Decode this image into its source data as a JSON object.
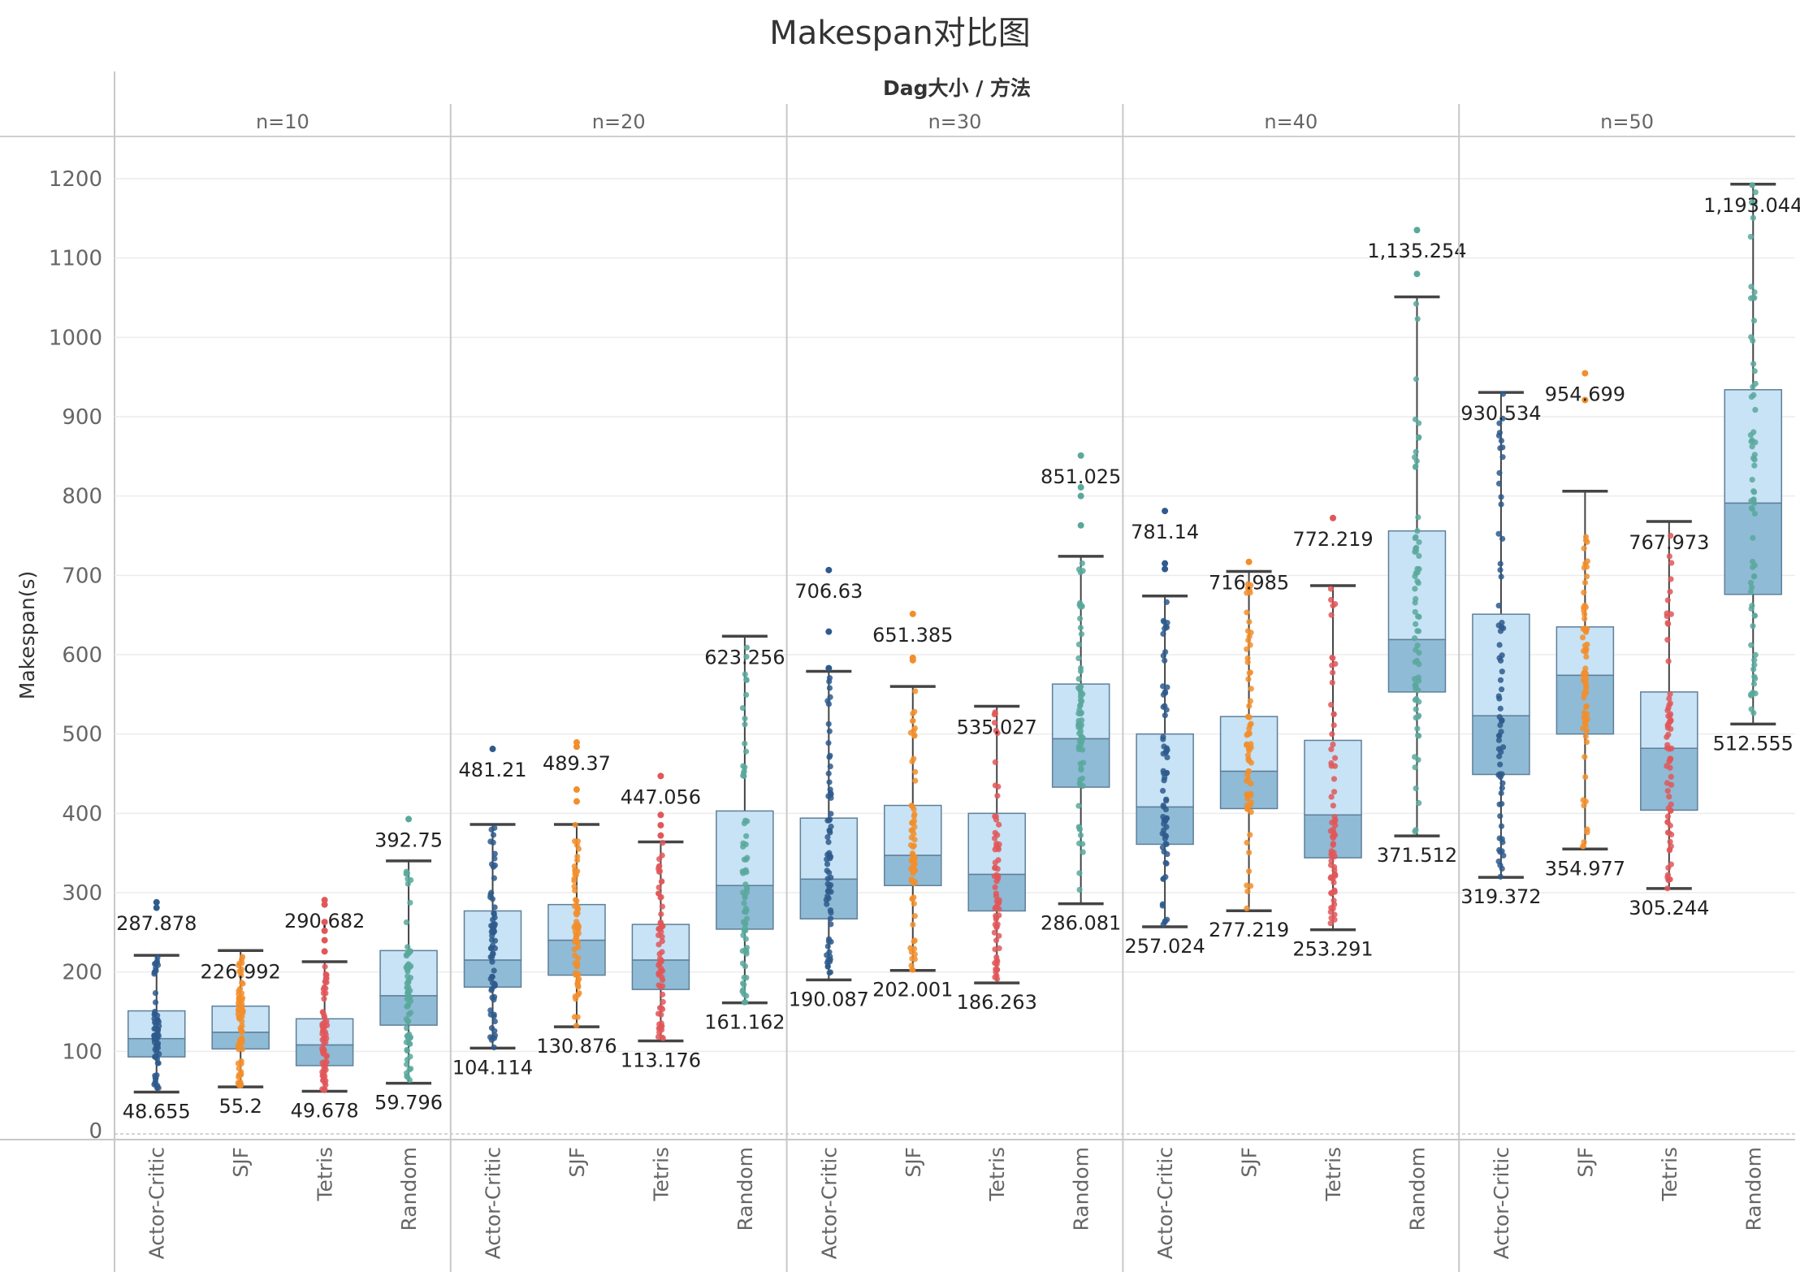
{
  "chart_data": {
    "type": "boxplot",
    "title": "Makespan对比图",
    "header": "Dag大小 / 方法",
    "ylabel": "Makespan(s)",
    "ylim": [
      0,
      1200
    ],
    "yticks": [
      0,
      100,
      200,
      300,
      400,
      500,
      600,
      700,
      800,
      900,
      1000,
      1100,
      1200
    ],
    "grid": true,
    "method_colors": {
      "Actor-Critic": "#2e5a8c",
      "SJF": "#f28e2b",
      "Tetris": "#e15759",
      "Random": "#59a89c"
    },
    "box_colors": {
      "upper": "#c7e3f5",
      "lower": "#8fbbd6",
      "whisker": "#444444"
    },
    "panels": [
      {
        "label": "n=10",
        "groups": [
          {
            "method": "Actor-Critic",
            "min": 48.655,
            "q1": 93,
            "median": 116,
            "q3": 151,
            "max": 287.878,
            "whisker_high": 221,
            "outliers": [
              281,
              287.878
            ],
            "max_label": "287.878",
            "min_label": "48.655"
          },
          {
            "method": "SJF",
            "min": 55.2,
            "q1": 103,
            "median": 124,
            "q3": 157,
            "max": 226.992,
            "whisker_high": 226.992,
            "outliers": [],
            "max_label": "226.992",
            "min_label": "55.2"
          },
          {
            "method": "Tetris",
            "min": 49.678,
            "q1": 82,
            "median": 108,
            "q3": 141,
            "max": 290.682,
            "whisker_high": 213,
            "outliers": [
              226,
              240,
              252,
              263,
              285,
              290.682
            ],
            "max_label": "290.682",
            "min_label": "49.678"
          },
          {
            "method": "Random",
            "min": 59.796,
            "q1": 133,
            "median": 170,
            "q3": 227,
            "max": 392.75,
            "whisker_high": 340,
            "outliers": [
              392.75
            ],
            "max_label": "392.75",
            "min_label": "59.796"
          }
        ]
      },
      {
        "label": "n=20",
        "groups": [
          {
            "method": "Actor-Critic",
            "min": 104.114,
            "q1": 181,
            "median": 215,
            "q3": 277,
            "max": 481.21,
            "whisker_high": 386,
            "outliers": [
              481.21
            ],
            "max_label": "481.21",
            "min_label": "104.114"
          },
          {
            "method": "SJF",
            "min": 130.876,
            "q1": 196,
            "median": 240,
            "q3": 285,
            "max": 489.37,
            "whisker_high": 386,
            "outliers": [
              415,
              430,
              484,
              489.37
            ],
            "max_label": "489.37",
            "min_label": "130.876"
          },
          {
            "method": "Tetris",
            "min": 113.176,
            "q1": 178,
            "median": 215,
            "q3": 260,
            "max": 447.056,
            "whisker_high": 364,
            "outliers": [
              372,
              385,
              398,
              447.056
            ],
            "max_label": "447.056",
            "min_label": "113.176"
          },
          {
            "method": "Random",
            "min": 161.162,
            "q1": 254,
            "median": 309,
            "q3": 403,
            "max": 623.256,
            "whisker_high": 623.256,
            "outliers": [],
            "max_label": "623.256",
            "min_label": "161.162"
          }
        ]
      },
      {
        "label": "n=30",
        "groups": [
          {
            "method": "Actor-Critic",
            "min": 190.087,
            "q1": 267,
            "median": 317,
            "q3": 394,
            "max": 706.63,
            "whisker_high": 579,
            "outliers": [
              583,
              629,
              706.63
            ],
            "max_label": "706.63",
            "min_label": "190.087"
          },
          {
            "method": "SJF",
            "min": 202.001,
            "q1": 309,
            "median": 347,
            "q3": 410,
            "max": 651.385,
            "whisker_high": 560,
            "outliers": [
              593,
              596,
              651.385
            ],
            "max_label": "651.385",
            "min_label": "202.001"
          },
          {
            "method": "Tetris",
            "min": 186.263,
            "q1": 277,
            "median": 323,
            "q3": 400,
            "max": 535.027,
            "whisker_high": 535.027,
            "outliers": [],
            "max_label": "535.027",
            "min_label": "186.263"
          },
          {
            "method": "Random",
            "min": 286.081,
            "q1": 433,
            "median": 494,
            "q3": 563,
            "max": 851.025,
            "whisker_high": 724,
            "outliers": [
              763,
              800,
              811,
              851.025
            ],
            "max_label": "851.025",
            "min_label": "286.081"
          }
        ]
      },
      {
        "label": "n=40",
        "groups": [
          {
            "method": "Actor-Critic",
            "min": 257.024,
            "q1": 361,
            "median": 408,
            "q3": 500,
            "max": 781.14,
            "whisker_high": 674,
            "outliers": [
              708,
              715,
              781.14
            ],
            "max_label": "781.14",
            "min_label": "257.024"
          },
          {
            "method": "SJF",
            "min": 277.219,
            "q1": 406,
            "median": 453,
            "q3": 522,
            "max": 716.985,
            "whisker_high": 705,
            "outliers": [
              716.985
            ],
            "max_label": "716.985",
            "min_label": "277.219"
          },
          {
            "method": "Tetris",
            "min": 253.291,
            "q1": 344,
            "median": 398,
            "q3": 492,
            "max": 772.219,
            "whisker_high": 687,
            "outliers": [
              772.219
            ],
            "max_label": "772.219",
            "min_label": "253.291"
          },
          {
            "method": "Random",
            "min": 371.512,
            "q1": 553,
            "median": 619,
            "q3": 756,
            "max": 1135.254,
            "whisker_high": 1051,
            "outliers": [
              1080,
              1135.254
            ],
            "max_label": "1,135.254",
            "min_label": "371.512"
          }
        ]
      },
      {
        "label": "n=50",
        "groups": [
          {
            "method": "Actor-Critic",
            "min": 319.372,
            "q1": 449,
            "median": 523,
            "q3": 651,
            "max": 930.534,
            "whisker_high": 930.534,
            "outliers": [],
            "max_label": "930.534",
            "min_label": "319.372"
          },
          {
            "method": "SJF",
            "min": 354.977,
            "q1": 500,
            "median": 574,
            "q3": 635,
            "max": 954.699,
            "whisker_high": 806,
            "outliers": [
              921,
              954.699
            ],
            "max_label": "954.699",
            "min_label": "354.977"
          },
          {
            "method": "Tetris",
            "min": 305.244,
            "q1": 404,
            "median": 482,
            "q3": 553,
            "max": 767.973,
            "whisker_high": 767.973,
            "outliers": [],
            "max_label": "767.973",
            "min_label": "305.244"
          },
          {
            "method": "Random",
            "min": 512.555,
            "q1": 676,
            "median": 791,
            "q3": 934,
            "max": 1193.044,
            "whisker_high": 1193.044,
            "outliers": [],
            "max_label": "1,193.044",
            "min_label": "512.555"
          }
        ]
      }
    ]
  }
}
